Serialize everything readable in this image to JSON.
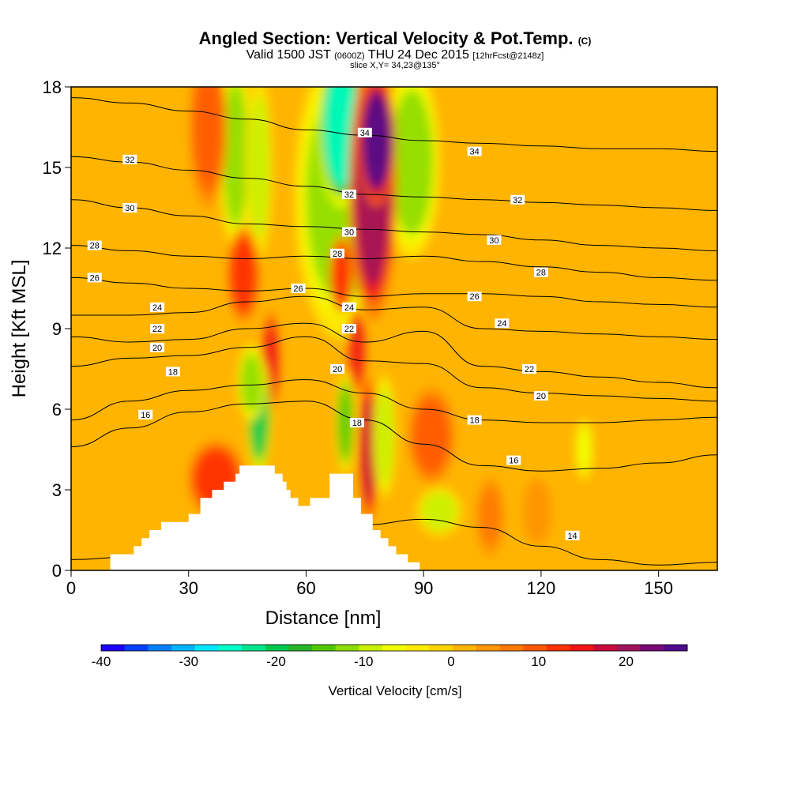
{
  "header": {
    "title": "Angled Section: Vertical Velocity & Pot.Temp.",
    "title_mark": "(C)",
    "valid_a": "Valid 1500 JST",
    "valid_b": "(0600Z)",
    "valid_c": "THU 24 Dec 2015",
    "valid_d": "[12hrFcst@2148z]",
    "slice": "slice X,Y= 34,23@135°"
  },
  "chart_data": {
    "type": "heatmap",
    "xlabel": "Distance [nm]",
    "ylabel": "Height [Kft MSL]",
    "xlim": [
      0,
      165
    ],
    "ylim": [
      0,
      18
    ],
    "x_ticks": [
      0,
      30,
      60,
      90,
      120,
      150
    ],
    "y_ticks": [
      0,
      3,
      6,
      9,
      12,
      15,
      18
    ],
    "colorbar": {
      "label": "Vertical Velocity [cm/s]",
      "range": [
        -40,
        27
      ],
      "ticks": [
        -40,
        -30,
        -20,
        -10,
        0,
        10,
        20
      ],
      "colors": [
        "#1e00ff",
        "#0040ff",
        "#0080ff",
        "#00b4ff",
        "#00e6ff",
        "#00ffc8",
        "#00e68c",
        "#00c850",
        "#28b428",
        "#50c800",
        "#8cdc00",
        "#c8f000",
        "#f0ff00",
        "#ffeb00",
        "#ffd200",
        "#ffb400",
        "#ff9600",
        "#ff7800",
        "#ff5a00",
        "#ff3200",
        "#f01414",
        "#c80a3c",
        "#a0145a",
        "#780a78",
        "#500a8c"
      ]
    },
    "terrain": [
      [
        10,
        0.3
      ],
      [
        10,
        0.6
      ],
      [
        16,
        0.6
      ],
      [
        16,
        0.9
      ],
      [
        18,
        0.9
      ],
      [
        18,
        1.2
      ],
      [
        20,
        1.2
      ],
      [
        20,
        1.5
      ],
      [
        23,
        1.5
      ],
      [
        23,
        1.8
      ],
      [
        30,
        1.8
      ],
      [
        30,
        2.1
      ],
      [
        33,
        2.1
      ],
      [
        33,
        2.7
      ],
      [
        36,
        2.7
      ],
      [
        36,
        3.0
      ],
      [
        39,
        3.0
      ],
      [
        39,
        3.3
      ],
      [
        42,
        3.3
      ],
      [
        42,
        3.6
      ],
      [
        43,
        3.6
      ],
      [
        43,
        3.9
      ],
      [
        52,
        3.9
      ],
      [
        52,
        3.6
      ],
      [
        54,
        3.6
      ],
      [
        54,
        3.3
      ],
      [
        55,
        3.3
      ],
      [
        55,
        3.0
      ],
      [
        56,
        3.0
      ],
      [
        56,
        2.7
      ],
      [
        58,
        2.7
      ],
      [
        58,
        2.4
      ],
      [
        61,
        2.4
      ],
      [
        61,
        2.7
      ],
      [
        66,
        2.7
      ],
      [
        66,
        3.6
      ],
      [
        72,
        3.6
      ],
      [
        72,
        2.7
      ],
      [
        74,
        2.7
      ],
      [
        74,
        2.1
      ],
      [
        77,
        2.1
      ],
      [
        77,
        1.5
      ],
      [
        79,
        1.5
      ],
      [
        79,
        1.2
      ],
      [
        81,
        1.2
      ],
      [
        81,
        0.9
      ],
      [
        83,
        0.9
      ],
      [
        83,
        0.6
      ],
      [
        86,
        0.6
      ],
      [
        86,
        0.3
      ],
      [
        89,
        0.3
      ],
      [
        89,
        0
      ]
    ],
    "theta_contours": [
      {
        "label": "14",
        "y": [
          0.4,
          0.5,
          0.8,
          1.2,
          1.5,
          1.7,
          1.9,
          1.6,
          0.9,
          0.4,
          0.2,
          0.3
        ]
      },
      {
        "label": "16",
        "y": [
          4.6,
          5.3,
          5.9,
          6.2,
          6.3,
          5.6,
          4.7,
          3.9,
          3.7,
          3.8,
          4.0,
          4.3
        ]
      },
      {
        "label": "18",
        "y": [
          5.6,
          6.3,
          6.7,
          6.9,
          7.1,
          6.6,
          6.0,
          5.6,
          5.5,
          5.5,
          5.6,
          5.7
        ]
      },
      {
        "label": "20",
        "y": [
          7.6,
          7.9,
          8.0,
          8.3,
          8.7,
          7.8,
          7.7,
          6.8,
          6.6,
          6.5,
          6.4,
          6.3
        ]
      },
      {
        "label": "22",
        "y": [
          8.7,
          8.5,
          8.6,
          9.0,
          9.2,
          8.5,
          8.9,
          7.6,
          7.4,
          7.2,
          7.0,
          6.8
        ]
      },
      {
        "label": "24",
        "y": [
          9.5,
          9.5,
          9.6,
          10.0,
          10.2,
          9.7,
          9.8,
          9.0,
          8.9,
          8.8,
          8.7,
          8.6
        ]
      },
      {
        "label": "26",
        "y": [
          10.9,
          10.7,
          10.5,
          10.4,
          10.5,
          10.2,
          10.3,
          10.3,
          10.2,
          10.0,
          9.9,
          9.8
        ]
      },
      {
        "label": "28",
        "y": [
          12.1,
          11.9,
          11.7,
          11.6,
          11.7,
          11.6,
          11.7,
          11.5,
          11.3,
          11.1,
          10.9,
          10.8
        ]
      },
      {
        "label": "30",
        "y": [
          13.8,
          13.5,
          13.2,
          12.9,
          12.8,
          12.7,
          12.6,
          12.5,
          12.3,
          12.1,
          12.0,
          11.9
        ]
      },
      {
        "label": "32",
        "y": [
          15.4,
          15.2,
          14.9,
          14.6,
          14.3,
          14.0,
          13.9,
          13.8,
          13.7,
          13.6,
          13.5,
          13.4
        ]
      },
      {
        "label": "34",
        "y": [
          17.6,
          17.4,
          17.1,
          16.8,
          16.4,
          16.2,
          16.0,
          15.9,
          15.8,
          15.7,
          15.7,
          15.6
        ]
      }
    ],
    "theta_contour_x": [
      0,
      15,
      30,
      45,
      60,
      75,
      90,
      105,
      120,
      135,
      150,
      165
    ],
    "contour_labels": [
      {
        "text": "34",
        "x": 75,
        "y": 16.3
      },
      {
        "text": "34",
        "x": 103,
        "y": 15.6
      },
      {
        "text": "32",
        "x": 15,
        "y": 15.3
      },
      {
        "text": "32",
        "x": 71,
        "y": 14.0
      },
      {
        "text": "32",
        "x": 114,
        "y": 13.8
      },
      {
        "text": "30",
        "x": 15,
        "y": 13.5
      },
      {
        "text": "30",
        "x": 71,
        "y": 12.6
      },
      {
        "text": "30",
        "x": 108,
        "y": 12.3
      },
      {
        "text": "28",
        "x": 6,
        "y": 12.1
      },
      {
        "text": "28",
        "x": 68,
        "y": 11.8
      },
      {
        "text": "28",
        "x": 120,
        "y": 11.1
      },
      {
        "text": "26",
        "x": 6,
        "y": 10.9
      },
      {
        "text": "26",
        "x": 58,
        "y": 10.5
      },
      {
        "text": "26",
        "x": 103,
        "y": 10.2
      },
      {
        "text": "24",
        "x": 22,
        "y": 9.8
      },
      {
        "text": "24",
        "x": 71,
        "y": 9.8
      },
      {
        "text": "24",
        "x": 110,
        "y": 9.2
      },
      {
        "text": "22",
        "x": 22,
        "y": 9.0
      },
      {
        "text": "22",
        "x": 71,
        "y": 9.0
      },
      {
        "text": "22",
        "x": 117,
        "y": 7.5
      },
      {
        "text": "20",
        "x": 22,
        "y": 8.3
      },
      {
        "text": "20",
        "x": 68,
        "y": 7.5
      },
      {
        "text": "20",
        "x": 120,
        "y": 6.5
      },
      {
        "text": "18",
        "x": 26,
        "y": 7.4
      },
      {
        "text": "18",
        "x": 73,
        "y": 5.5
      },
      {
        "text": "18",
        "x": 103,
        "y": 5.6
      },
      {
        "text": "16",
        "x": 19,
        "y": 5.8
      },
      {
        "text": "16",
        "x": 113,
        "y": 4.1
      },
      {
        "text": "14",
        "x": 128,
        "y": 1.3
      }
    ],
    "velocity_features": [
      {
        "cx": 69,
        "cy": 14.0,
        "rx": 10,
        "ry": 4.5,
        "v": -12
      },
      {
        "cx": 69,
        "cy": 16.5,
        "rx": 5,
        "ry": 2.5,
        "v": -25
      },
      {
        "cx": 87,
        "cy": 15.2,
        "rx": 6,
        "ry": 3,
        "v": -12
      },
      {
        "cx": 77,
        "cy": 14.2,
        "rx": 5,
        "ry": 4,
        "v": 20
      },
      {
        "cx": 78,
        "cy": 16.0,
        "rx": 4,
        "ry": 2,
        "v": 26
      },
      {
        "cx": 42,
        "cy": 15.5,
        "rx": 3.5,
        "ry": 3,
        "v": -12
      },
      {
        "cx": 48,
        "cy": 15.0,
        "rx": 3,
        "ry": 3,
        "v": -8
      },
      {
        "cx": 35,
        "cy": 16.5,
        "rx": 4,
        "ry": 2.5,
        "v": 10
      },
      {
        "cx": 44,
        "cy": 11.0,
        "rx": 3.5,
        "ry": 1.5,
        "v": 12
      },
      {
        "cx": 69,
        "cy": 11.0,
        "rx": 2.5,
        "ry": 1.2,
        "v": 12
      },
      {
        "cx": 51,
        "cy": 7.8,
        "rx": 2,
        "ry": 1.5,
        "v": 15
      },
      {
        "cx": 73,
        "cy": 8.2,
        "rx": 2,
        "ry": 1.3,
        "v": 15
      },
      {
        "cx": 48,
        "cy": 5.8,
        "rx": 2.5,
        "ry": 1.8,
        "v": -20
      },
      {
        "cx": 46,
        "cy": 7.0,
        "rx": 3,
        "ry": 1.2,
        "v": -12
      },
      {
        "cx": 70,
        "cy": 5.5,
        "rx": 2,
        "ry": 1.6,
        "v": -15
      },
      {
        "cx": 76,
        "cy": 4.5,
        "rx": 2,
        "ry": 2.2,
        "v": 17
      },
      {
        "cx": 80,
        "cy": 5.0,
        "rx": 2.5,
        "ry": 2,
        "v": -10
      },
      {
        "cx": 37,
        "cy": 3.4,
        "rx": 6,
        "ry": 1.2,
        "v": 12
      },
      {
        "cx": 92,
        "cy": 5.0,
        "rx": 5,
        "ry": 1.5,
        "v": 10
      },
      {
        "cx": 94,
        "cy": 2.2,
        "rx": 5,
        "ry": 0.8,
        "v": -8
      },
      {
        "cx": 107,
        "cy": 2.0,
        "rx": 3,
        "ry": 1.2,
        "v": 7
      },
      {
        "cx": 119,
        "cy": 2.2,
        "rx": 3,
        "ry": 1,
        "v": 5
      },
      {
        "cx": 131,
        "cy": 4.5,
        "rx": 2,
        "ry": 1,
        "v": -6
      }
    ]
  }
}
